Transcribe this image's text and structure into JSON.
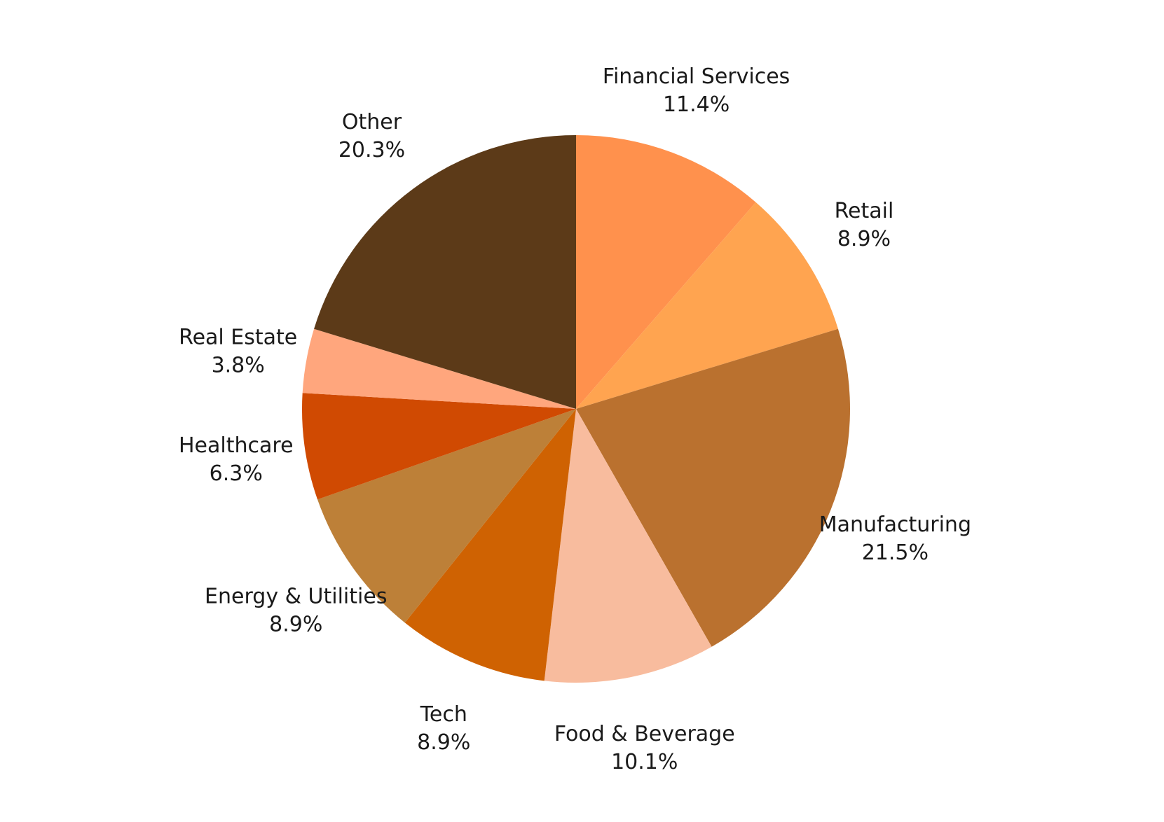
{
  "chart_data": {
    "type": "pie",
    "title": "",
    "slices": [
      {
        "label": "Financial Services",
        "value": 11.4,
        "value_label": "11.4%",
        "color": "#FF914D"
      },
      {
        "label": "Retail",
        "value": 8.9,
        "value_label": "8.9%",
        "color": "#FFA450"
      },
      {
        "label": "Manufacturing",
        "value": 21.5,
        "value_label": "21.5%",
        "color": "#BA712F"
      },
      {
        "label": "Food & Beverage",
        "value": 10.1,
        "value_label": "10.1%",
        "color": "#F8BC9E"
      },
      {
        "label": "Tech",
        "value": 8.9,
        "value_label": "8.9%",
        "color": "#CF6202"
      },
      {
        "label": "Energy & Utilities",
        "value": 8.9,
        "value_label": "8.9%",
        "color": "#BD8038"
      },
      {
        "label": "Healthcare",
        "value": 6.3,
        "value_label": "6.3%",
        "color": "#D04A02"
      },
      {
        "label": "Real Estate",
        "value": 3.8,
        "value_label": "3.8%",
        "color": "#FFA67D"
      },
      {
        "label": "Other",
        "value": 20.3,
        "value_label": "20.3%",
        "color": "#5C3A18"
      }
    ],
    "start_angle": "12 o'clock",
    "direction": "clockwise",
    "legend": "none"
  }
}
